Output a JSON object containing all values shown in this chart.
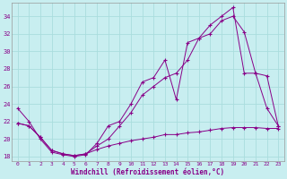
{
  "xlabel": "Windchill (Refroidissement éolien,°C)",
  "bg_color": "#c8eef0",
  "line_color": "#880088",
  "grid_color": "#aadddd",
  "xlim": [
    -0.5,
    23.5
  ],
  "ylim": [
    17.5,
    35.5
  ],
  "yticks": [
    18,
    20,
    22,
    24,
    26,
    28,
    30,
    32,
    34
  ],
  "xticks": [
    0,
    1,
    2,
    3,
    4,
    5,
    6,
    7,
    8,
    9,
    10,
    11,
    12,
    13,
    14,
    15,
    16,
    17,
    18,
    19,
    20,
    21,
    22,
    23
  ],
  "line1_x": [
    0,
    1,
    2,
    3,
    4,
    5,
    6,
    7,
    8,
    9,
    10,
    11,
    12,
    13,
    14,
    15,
    16,
    17,
    18,
    19,
    20,
    21,
    22,
    23
  ],
  "line1_y": [
    23.5,
    22.0,
    20.0,
    18.5,
    18.2,
    18.0,
    18.2,
    19.5,
    21.5,
    22.0,
    24.0,
    26.5,
    27.0,
    29.0,
    24.5,
    31.0,
    31.5,
    32.0,
    33.5,
    34.0,
    32.2,
    27.5,
    23.5,
    21.5
  ],
  "line2_x": [
    0,
    1,
    2,
    3,
    4,
    5,
    6,
    7,
    8,
    9,
    10,
    11,
    12,
    13,
    14,
    15,
    16,
    17,
    18,
    19,
    20,
    21,
    22,
    23
  ],
  "line2_y": [
    21.8,
    21.5,
    20.2,
    18.7,
    18.3,
    18.1,
    18.3,
    19.2,
    20.0,
    21.5,
    23.0,
    25.0,
    26.0,
    27.0,
    27.5,
    29.0,
    31.5,
    33.0,
    34.0,
    35.0,
    27.5,
    27.5,
    27.2,
    21.5
  ],
  "line3_x": [
    0,
    1,
    2,
    3,
    4,
    5,
    6,
    7,
    8,
    9,
    10,
    11,
    12,
    13,
    14,
    15,
    16,
    17,
    18,
    19,
    20,
    21,
    22,
    23
  ],
  "line3_y": [
    21.8,
    21.5,
    20.2,
    18.7,
    18.3,
    18.1,
    18.3,
    18.8,
    19.2,
    19.5,
    19.8,
    20.0,
    20.2,
    20.5,
    20.5,
    20.7,
    20.8,
    21.0,
    21.2,
    21.3,
    21.3,
    21.3,
    21.2,
    21.2
  ]
}
